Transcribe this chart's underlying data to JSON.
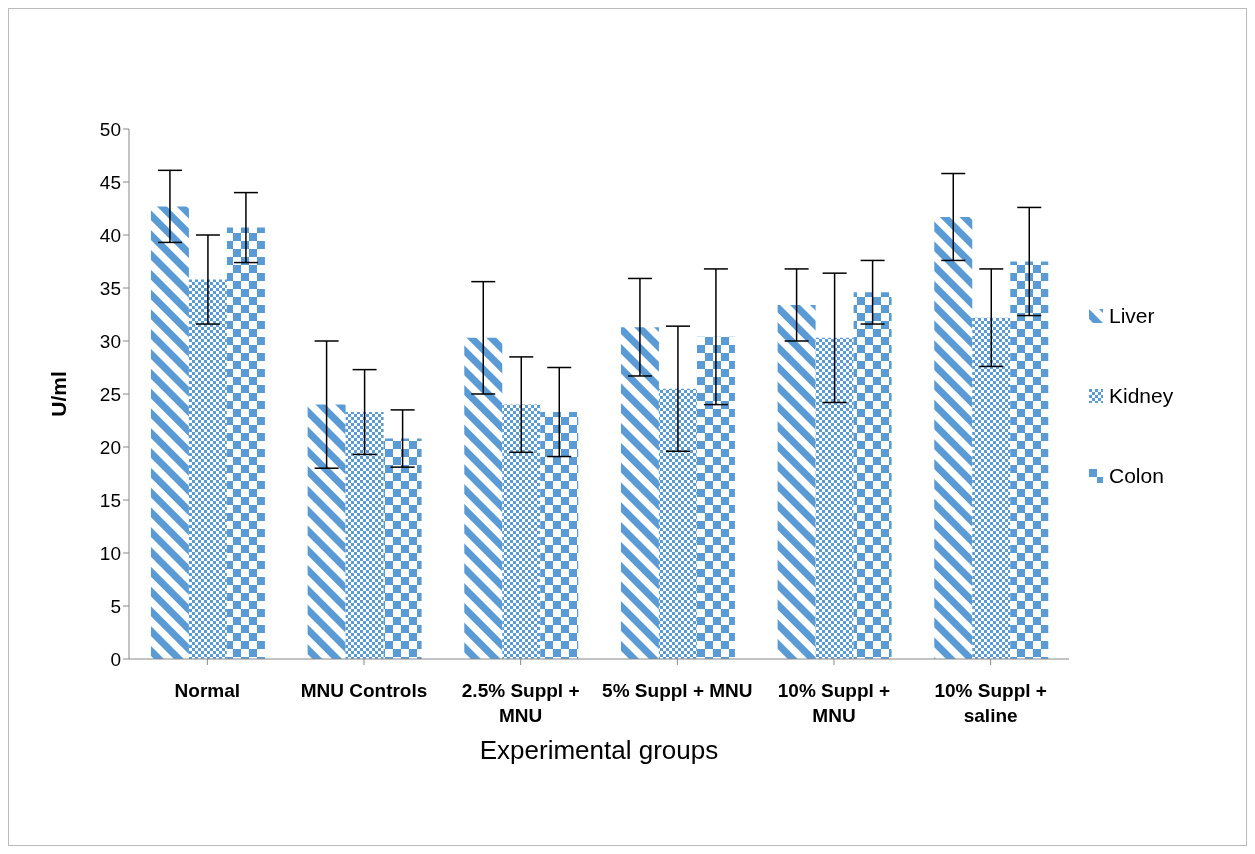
{
  "chart_data": {
    "type": "bar",
    "xlabel": "Experimental groups",
    "ylabel": "U/ml",
    "categories": [
      "Normal",
      "MNU Controls",
      "2.5% Suppl + MNU",
      "5% Suppl + MNU",
      "10% Suppl + MNU",
      "10% Suppl + saline"
    ],
    "series": [
      {
        "name": "Liver",
        "color": "#5b9bd5",
        "values": [
          42.7,
          24.0,
          30.3,
          31.3,
          33.4,
          41.7
        ],
        "errors": [
          3.4,
          6.0,
          5.3,
          4.6,
          3.4,
          4.1
        ]
      },
      {
        "name": "Kidney",
        "color": "#5b9bd5",
        "values": [
          35.8,
          23.3,
          24.0,
          25.5,
          30.3,
          32.2
        ],
        "errors": [
          4.2,
          4.0,
          4.5,
          5.9,
          6.1,
          4.6
        ]
      },
      {
        "name": "Colon",
        "color": "#5b9bd5",
        "values": [
          40.7,
          20.8,
          23.3,
          30.4,
          34.6,
          37.5
        ],
        "errors": [
          3.3,
          2.7,
          4.2,
          6.4,
          3.0,
          5.1
        ]
      }
    ],
    "ylim": [
      0,
      50
    ],
    "yticks": [
      0,
      5,
      10,
      15,
      20,
      25,
      30,
      35,
      40,
      45,
      50
    ],
    "grid": false,
    "legend": "right"
  }
}
